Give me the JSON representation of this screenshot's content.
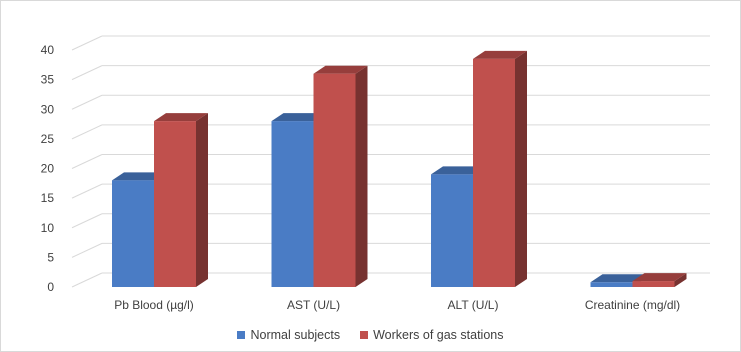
{
  "chart_data": {
    "type": "bar",
    "title": "",
    "xlabel": "",
    "ylabel": "",
    "categories": [
      "Pb Blood (µg/l)",
      "AST (U/L)",
      "ALT (U/L)",
      "Creatinine (mg/dl)"
    ],
    "series": [
      {
        "name": "Normal subjects",
        "color": "#4a7cc5",
        "values": [
          18,
          28,
          19,
          0.8
        ]
      },
      {
        "name": "Workers of gas stations",
        "color": "#c0504d",
        "values": [
          28,
          36,
          38.5,
          1.0
        ]
      }
    ],
    "ylim": [
      0,
      40
    ],
    "yticks": [
      0,
      5,
      10,
      15,
      20,
      25,
      30,
      35,
      40
    ],
    "grid": true,
    "legend_position": "bottom",
    "style": "3d-clustered-column"
  }
}
